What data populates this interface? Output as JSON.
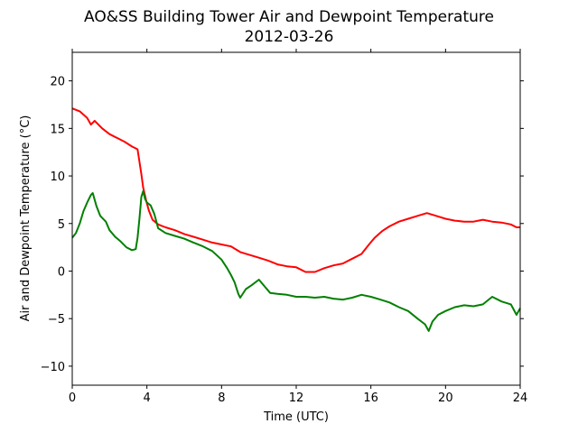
{
  "chart_data": {
    "type": "line",
    "title": "AO&SS Building Tower Air and Dewpoint Temperature",
    "subtitle": "2012-03-26",
    "xlabel": "Time (UTC)",
    "ylabel": "Air and Dewpoint Temperature (°C)",
    "xlim": [
      0,
      24
    ],
    "ylim": [
      -12,
      23
    ],
    "xticks": [
      0,
      4,
      8,
      12,
      16,
      20,
      24
    ],
    "yticks": [
      -10,
      -5,
      0,
      5,
      10,
      15,
      20
    ],
    "grid": false,
    "series": [
      {
        "color": "#ff0000",
        "x": [
          0,
          0.4,
          0.8,
          1.0,
          1.2,
          1.6,
          2.0,
          2.4,
          2.8,
          3.2,
          3.5,
          3.7,
          3.8,
          3.95,
          4.1,
          4.3,
          4.6,
          5.0,
          5.5,
          6.0,
          6.5,
          7.0,
          7.5,
          8.0,
          8.5,
          9.0,
          9.5,
          10.0,
          10.5,
          11.0,
          11.5,
          12.0,
          12.5,
          13.0,
          13.5,
          14.0,
          14.5,
          15.0,
          15.5,
          15.9,
          16.2,
          16.6,
          17.0,
          17.5,
          18.0,
          18.5,
          19.0,
          19.5,
          20.0,
          20.5,
          21.0,
          21.5,
          22.0,
          22.5,
          23.0,
          23.5,
          23.8,
          24.0
        ],
        "y": [
          17.1,
          16.8,
          16.1,
          15.4,
          15.8,
          15.0,
          14.4,
          14.0,
          13.6,
          13.1,
          12.8,
          10.2,
          8.8,
          7.5,
          6.4,
          5.4,
          4.9,
          4.6,
          4.3,
          3.9,
          3.6,
          3.3,
          3.0,
          2.8,
          2.6,
          2.0,
          1.7,
          1.4,
          1.1,
          0.7,
          0.5,
          0.4,
          -0.1,
          -0.1,
          0.3,
          0.6,
          0.8,
          1.3,
          1.8,
          2.8,
          3.5,
          4.2,
          4.7,
          5.2,
          5.5,
          5.8,
          6.1,
          5.8,
          5.5,
          5.3,
          5.2,
          5.2,
          5.4,
          5.2,
          5.1,
          4.9,
          4.6,
          4.6
        ]
      },
      {
        "color": "#008000",
        "x": [
          0,
          0.2,
          0.4,
          0.6,
          0.8,
          1.0,
          1.1,
          1.3,
          1.5,
          1.8,
          2.0,
          2.3,
          2.6,
          2.9,
          3.2,
          3.4,
          3.5,
          3.6,
          3.7,
          3.8,
          3.9,
          4.0,
          4.2,
          4.4,
          4.6,
          5.0,
          5.5,
          6.0,
          6.5,
          7.0,
          7.5,
          8.0,
          8.3,
          8.5,
          8.7,
          8.9,
          9.0,
          9.3,
          9.6,
          10.0,
          10.3,
          10.6,
          11.0,
          11.5,
          12.0,
          12.5,
          13.0,
          13.5,
          14.0,
          14.5,
          15.0,
          15.5,
          16.0,
          16.5,
          17.0,
          17.5,
          18.0,
          18.5,
          18.9,
          19.1,
          19.3,
          19.6,
          20.0,
          20.5,
          21.0,
          21.5,
          22.0,
          22.5,
          23.0,
          23.5,
          23.8,
          24.0
        ],
        "y": [
          3.5,
          4.0,
          5.0,
          6.3,
          7.2,
          8.0,
          8.2,
          6.8,
          5.8,
          5.2,
          4.3,
          3.6,
          3.1,
          2.5,
          2.2,
          2.3,
          3.5,
          5.5,
          7.8,
          8.4,
          7.6,
          7.2,
          6.9,
          6.0,
          4.5,
          4.0,
          3.7,
          3.4,
          3.0,
          2.6,
          2.1,
          1.2,
          0.3,
          -0.4,
          -1.2,
          -2.4,
          -2.8,
          -1.9,
          -1.5,
          -0.9,
          -1.6,
          -2.3,
          -2.4,
          -2.5,
          -2.7,
          -2.7,
          -2.8,
          -2.7,
          -2.9,
          -3.0,
          -2.8,
          -2.5,
          -2.7,
          -3.0,
          -3.3,
          -3.8,
          -4.2,
          -5.0,
          -5.6,
          -6.3,
          -5.3,
          -4.6,
          -4.2,
          -3.8,
          -3.6,
          -3.7,
          -3.5,
          -2.7,
          -3.2,
          -3.5,
          -4.6,
          -3.9
        ]
      }
    ]
  }
}
